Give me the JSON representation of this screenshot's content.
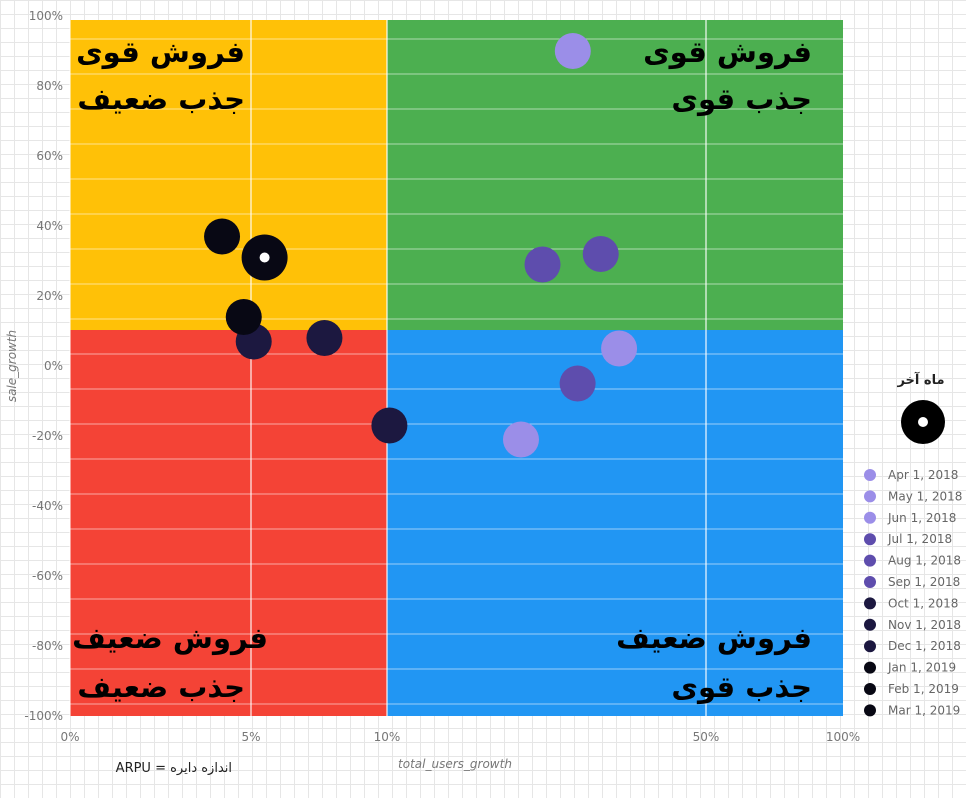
{
  "chart_data": {
    "type": "scatter",
    "xlabel": "total_users_growth",
    "ylabel": "sale_growth",
    "x_ticks": [
      "0%",
      "5%",
      "10%",
      "50%",
      "100%"
    ],
    "y_ticks": [
      "100%",
      "80%",
      "60%",
      "40%",
      "20%",
      "0%",
      "-20%",
      "-40%",
      "-60%",
      "-80%",
      "-100%"
    ],
    "quadrants": {
      "top_left": {
        "line1": "فروش قوی",
        "line2": "جذب ضعیف",
        "color": "#FFC107"
      },
      "top_right": {
        "line1": "فروش قوی",
        "line2": "جذب قوی",
        "color": "#4CAF50"
      },
      "bottom_left": {
        "line1": "فروش ضعیف",
        "line2": "جذب ضعیف",
        "color": "#F44336"
      },
      "bottom_right": {
        "line1": "فروش ضعیف",
        "line2": "جذب قوی",
        "color": "#2196F3"
      }
    },
    "bubble_size_note": "ARPU = اندازه دایره",
    "last_month_label": "ماه آخر",
    "series": [
      {
        "name": "Apr 1, 2018",
        "x": 0.333,
        "y": 90,
        "color": "#9b8ee8"
      },
      {
        "name": "May 1, 2018",
        "x": 0.391,
        "y": 5,
        "color": "#9b8ee8"
      },
      {
        "name": "Jun 1, 2018",
        "x": 0.268,
        "y": -21,
        "color": "#9b8ee8"
      },
      {
        "name": "Jul 1, 2018",
        "x": 0.295,
        "y": 29,
        "color": "#5e4dad"
      },
      {
        "name": "Aug 1, 2018",
        "x": 0.339,
        "y": -5,
        "color": "#5e4dad"
      },
      {
        "name": "Sep 1, 2018",
        "x": 0.368,
        "y": 32,
        "color": "#5e4dad"
      },
      {
        "name": "Oct 1, 2018",
        "x": 0.077,
        "y": 8,
        "color": "#1c1840"
      },
      {
        "name": "Nov 1, 2018",
        "x": 0.103,
        "y": -17,
        "color": "#1c1840"
      },
      {
        "name": "Dec 1, 2018",
        "x": 0.051,
        "y": 7,
        "color": "#1c1840"
      },
      {
        "name": "Jan 1, 2019",
        "x": 0.042,
        "y": 37,
        "color": "#080814"
      },
      {
        "name": "Feb 1, 2019",
        "x": 0.048,
        "y": 14,
        "color": "#080814"
      },
      {
        "name": "Mar 1, 2019",
        "x": 0.055,
        "y": 31,
        "color": "#080814",
        "last": true
      }
    ]
  }
}
